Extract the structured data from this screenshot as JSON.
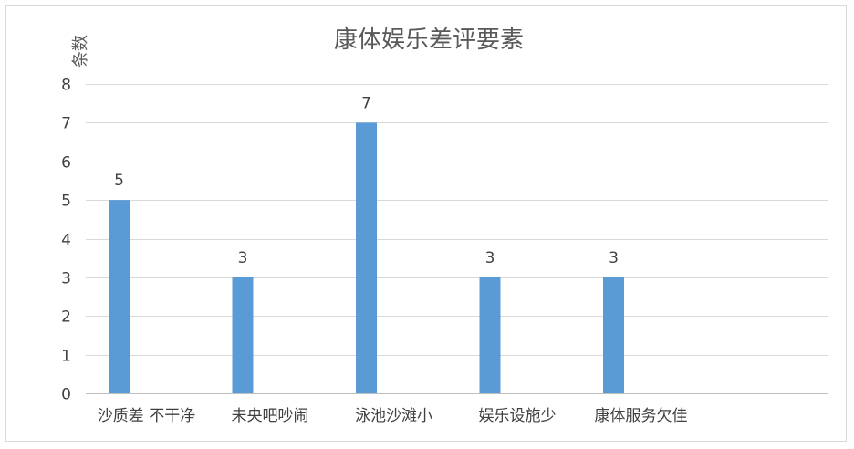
{
  "chart_data": {
    "type": "bar",
    "title": "康体娱乐差评要素",
    "xlabel": "",
    "ylabel": "条数",
    "categories": [
      "沙质差 不干净",
      "未央吧吵闹",
      "泳池沙滩小",
      "娱乐设施少",
      "康体服务欠佳"
    ],
    "values": [
      5,
      3,
      7,
      3,
      3
    ],
    "ylim": [
      0,
      8
    ],
    "yticks": [
      0,
      1,
      2,
      3,
      4,
      5,
      6,
      7,
      8
    ],
    "data_labels": true,
    "grid": true,
    "legend": "none",
    "bar_color": "#5b9bd5",
    "grid_color": "#d9d9d9"
  }
}
